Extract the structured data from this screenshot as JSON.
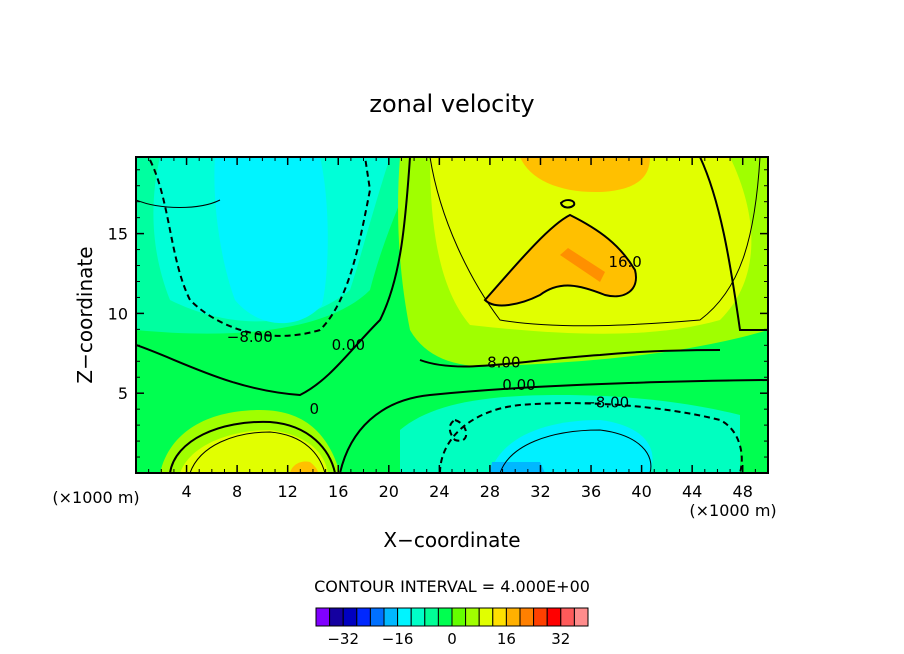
{
  "chart_data": {
    "type": "heatmap",
    "title": "zonal velocity",
    "xlabel": "X−coordinate",
    "ylabel": "Z−coordinate",
    "x_unit_left": "(×1000 m)",
    "x_unit_right": "(×1000 m)",
    "xlim": [
      0,
      50
    ],
    "ylim": [
      0,
      19.8
    ],
    "x_ticks": [
      4,
      8,
      12,
      16,
      20,
      24,
      28,
      32,
      36,
      40,
      44,
      48
    ],
    "y_ticks": [
      5,
      10,
      15
    ],
    "contour_interval_text": "CONTOUR INTERVAL = 4.000E+00",
    "contour_labels": [
      {
        "text": "−8.00",
        "x": 9.0,
        "y": 8.2
      },
      {
        "text": "0.00",
        "x": 16.8,
        "y": 7.7
      },
      {
        "text": "8.00",
        "x": 29.1,
        "y": 6.6
      },
      {
        "text": "0.00",
        "x": 30.3,
        "y": 5.2
      },
      {
        "text": "−8.00",
        "x": 37.2,
        "y": 4.1
      },
      {
        "text": "16.0",
        "x": 38.7,
        "y": 12.9
      },
      {
        "text": "0",
        "x": 14.1,
        "y": 3.7
      }
    ],
    "colorbar": {
      "tick_labels": [
        "−32",
        "−16",
        "0",
        "16",
        "32"
      ],
      "tick_values": [
        -32,
        -16,
        0,
        16,
        32
      ],
      "colors": [
        "#8000ff",
        "#1400a0",
        "#0000c0",
        "#0028ff",
        "#0070ff",
        "#00b8ff",
        "#00f4ff",
        "#00ffc8",
        "#00ff96",
        "#00ff50",
        "#64ff00",
        "#a0ff00",
        "#e1ff00",
        "#ffe000",
        "#ffb000",
        "#ff8000",
        "#ff4000",
        "#ff0000",
        "#ff5a5a",
        "#ff8c8c"
      ]
    }
  }
}
